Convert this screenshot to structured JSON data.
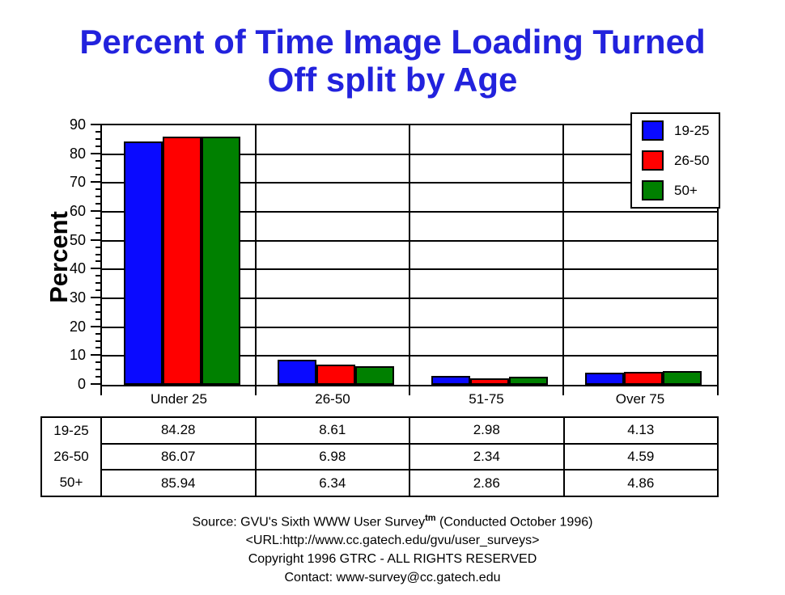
{
  "colors": {
    "title": "#2222dd",
    "series_blue": "#0a0aff",
    "series_red": "#ff0000",
    "series_green": "#008000",
    "axis": "#000000",
    "background": "#ffffff"
  },
  "title": {
    "line1": "Percent of Time Image Loading Turned",
    "line2": "Off split by Age"
  },
  "chart_data": {
    "type": "bar",
    "title": "Percent of Time Image Loading Turned Off split by Age",
    "ylabel": "Percent",
    "xlabel": "",
    "ylim": [
      0,
      90
    ],
    "yticks": [
      0,
      10,
      20,
      30,
      40,
      50,
      60,
      70,
      80,
      90
    ],
    "ytick_step": 10,
    "minor_tick_step": 2.5,
    "grid": true,
    "legend_position": "top-right",
    "categories": [
      "Under 25",
      "26-50",
      "51-75",
      "Over 75"
    ],
    "series": [
      {
        "name": "19-25",
        "color": "#0a0aff",
        "values": [
          84.28,
          8.61,
          2.98,
          4.13
        ]
      },
      {
        "name": "26-50",
        "color": "#ff0000",
        "values": [
          86.07,
          6.98,
          2.34,
          4.59
        ]
      },
      {
        "name": "50+",
        "color": "#008000",
        "values": [
          85.94,
          6.34,
          2.86,
          4.86
        ]
      }
    ]
  },
  "table": {
    "row_labels": [
      "19-25",
      "26-50",
      "50+"
    ],
    "rows": [
      [
        "84.28",
        "8.61",
        "2.98",
        "4.13"
      ],
      [
        "86.07",
        "6.98",
        "2.34",
        "4.59"
      ],
      [
        "85.94",
        "6.34",
        "2.86",
        "4.86"
      ]
    ]
  },
  "footer": {
    "source_prefix": "Source: GVU's Sixth WWW User Survey",
    "source_sup": "tm",
    "source_suffix": " (Conducted October 1996)",
    "url_line": "<URL:http://www.cc.gatech.edu/gvu/user_surveys>",
    "copyright_line": "Copyright 1996 GTRC -  ALL RIGHTS RESERVED",
    "contact_line": "Contact: www-survey@cc.gatech.edu"
  }
}
